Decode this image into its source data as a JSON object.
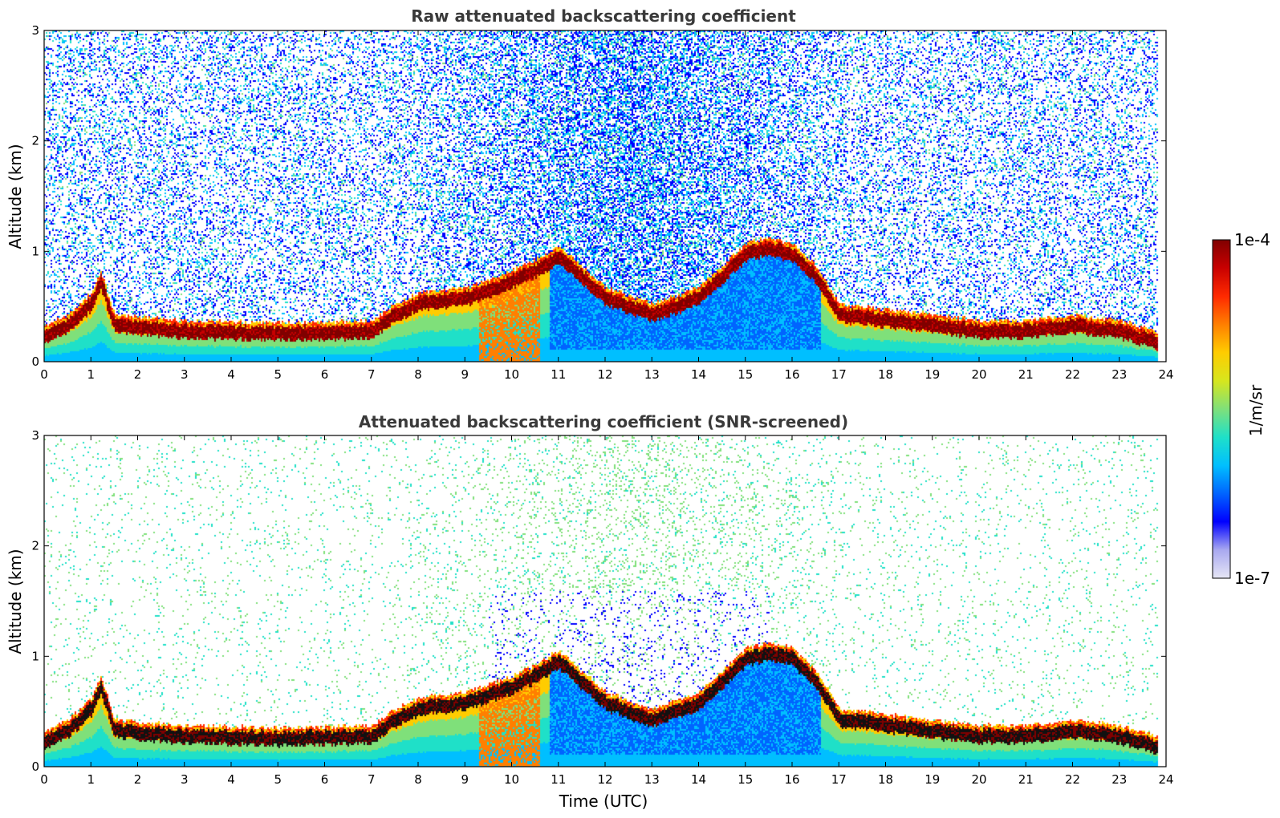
{
  "chart_data": [
    {
      "type": "heatmap",
      "title": "Raw attenuated backscattering coefficient",
      "xlabel": "",
      "ylabel": "Altitude (km)",
      "xlim": [
        0,
        24
      ],
      "ylim": [
        0,
        3
      ],
      "x_ticks": [
        0,
        1,
        2,
        3,
        4,
        5,
        6,
        7,
        8,
        9,
        10,
        11,
        12,
        13,
        14,
        15,
        16,
        17,
        18,
        19,
        20,
        21,
        22,
        23,
        24
      ],
      "y_ticks": [
        0,
        1,
        2,
        3
      ],
      "x_tick_labels": [
        "0",
        "1",
        "2",
        "3",
        "4",
        "5",
        "6",
        "7",
        "8",
        "9",
        "10",
        "11",
        "12",
        "13",
        "14",
        "15",
        "16",
        "17",
        "18",
        "19",
        "20",
        "21",
        "22",
        "23",
        "24"
      ],
      "y_tick_labels": [
        "0",
        "1",
        "2",
        "3"
      ],
      "data_end_time": 23.8,
      "noise_level": "high",
      "boundary_layer_top_km": {
        "x": [
          0,
          0.5,
          1.0,
          1.2,
          1.5,
          3,
          5,
          7,
          7.5,
          8,
          9,
          10,
          10.5,
          11,
          12,
          13,
          14,
          14.5,
          15,
          15.5,
          16,
          16.5,
          17,
          18,
          19,
          20,
          21,
          22,
          23,
          23.8
        ],
        "y": [
          0.25,
          0.35,
          0.55,
          0.75,
          0.35,
          0.3,
          0.28,
          0.3,
          0.45,
          0.55,
          0.6,
          0.75,
          0.85,
          0.98,
          0.6,
          0.45,
          0.6,
          0.8,
          1.0,
          1.05,
          1.0,
          0.8,
          0.45,
          0.4,
          0.35,
          0.3,
          0.3,
          0.35,
          0.3,
          0.2
        ]
      }
    },
    {
      "type": "heatmap",
      "title": "Attenuated backscattering coefficient (SNR-screened)",
      "xlabel": "Time (UTC)",
      "ylabel": "Altitude (km)",
      "xlim": [
        0,
        24
      ],
      "ylim": [
        0,
        3
      ],
      "x_ticks": [
        0,
        1,
        2,
        3,
        4,
        5,
        6,
        7,
        8,
        9,
        10,
        11,
        12,
        13,
        14,
        15,
        16,
        17,
        18,
        19,
        20,
        21,
        22,
        23,
        24
      ],
      "y_ticks": [
        0,
        1,
        2,
        3
      ],
      "x_tick_labels": [
        "0",
        "1",
        "2",
        "3",
        "4",
        "5",
        "6",
        "7",
        "8",
        "9",
        "10",
        "11",
        "12",
        "13",
        "14",
        "15",
        "16",
        "17",
        "18",
        "19",
        "20",
        "21",
        "22",
        "23",
        "24"
      ],
      "y_tick_labels": [
        "0",
        "1",
        "2",
        "3"
      ],
      "data_end_time": 23.8,
      "noise_level": "screened",
      "boundary_layer_top_km": {
        "x": [
          0,
          0.5,
          1.0,
          1.2,
          1.5,
          3,
          5,
          7,
          7.5,
          8,
          9,
          10,
          10.5,
          11,
          12,
          13,
          14,
          14.5,
          15,
          15.5,
          16,
          16.5,
          17,
          18,
          19,
          20,
          21,
          22,
          23,
          23.8
        ],
        "y": [
          0.25,
          0.35,
          0.55,
          0.75,
          0.35,
          0.3,
          0.28,
          0.3,
          0.45,
          0.55,
          0.6,
          0.75,
          0.85,
          0.98,
          0.6,
          0.45,
          0.6,
          0.8,
          1.0,
          1.05,
          1.0,
          0.8,
          0.45,
          0.4,
          0.35,
          0.3,
          0.3,
          0.35,
          0.3,
          0.2
        ]
      }
    }
  ],
  "colorbar": {
    "label": "1/m/sr",
    "max_label": "1e-4",
    "min_label": "1e-7",
    "colormap": [
      "#e6e6f5",
      "#a9a9f0",
      "#0000ff",
      "#0064ff",
      "#00bfff",
      "#1fe0c8",
      "#7fe07a",
      "#d6e61e",
      "#ffcc00",
      "#ff7f00",
      "#ff2a00",
      "#c80000",
      "#800000"
    ]
  }
}
